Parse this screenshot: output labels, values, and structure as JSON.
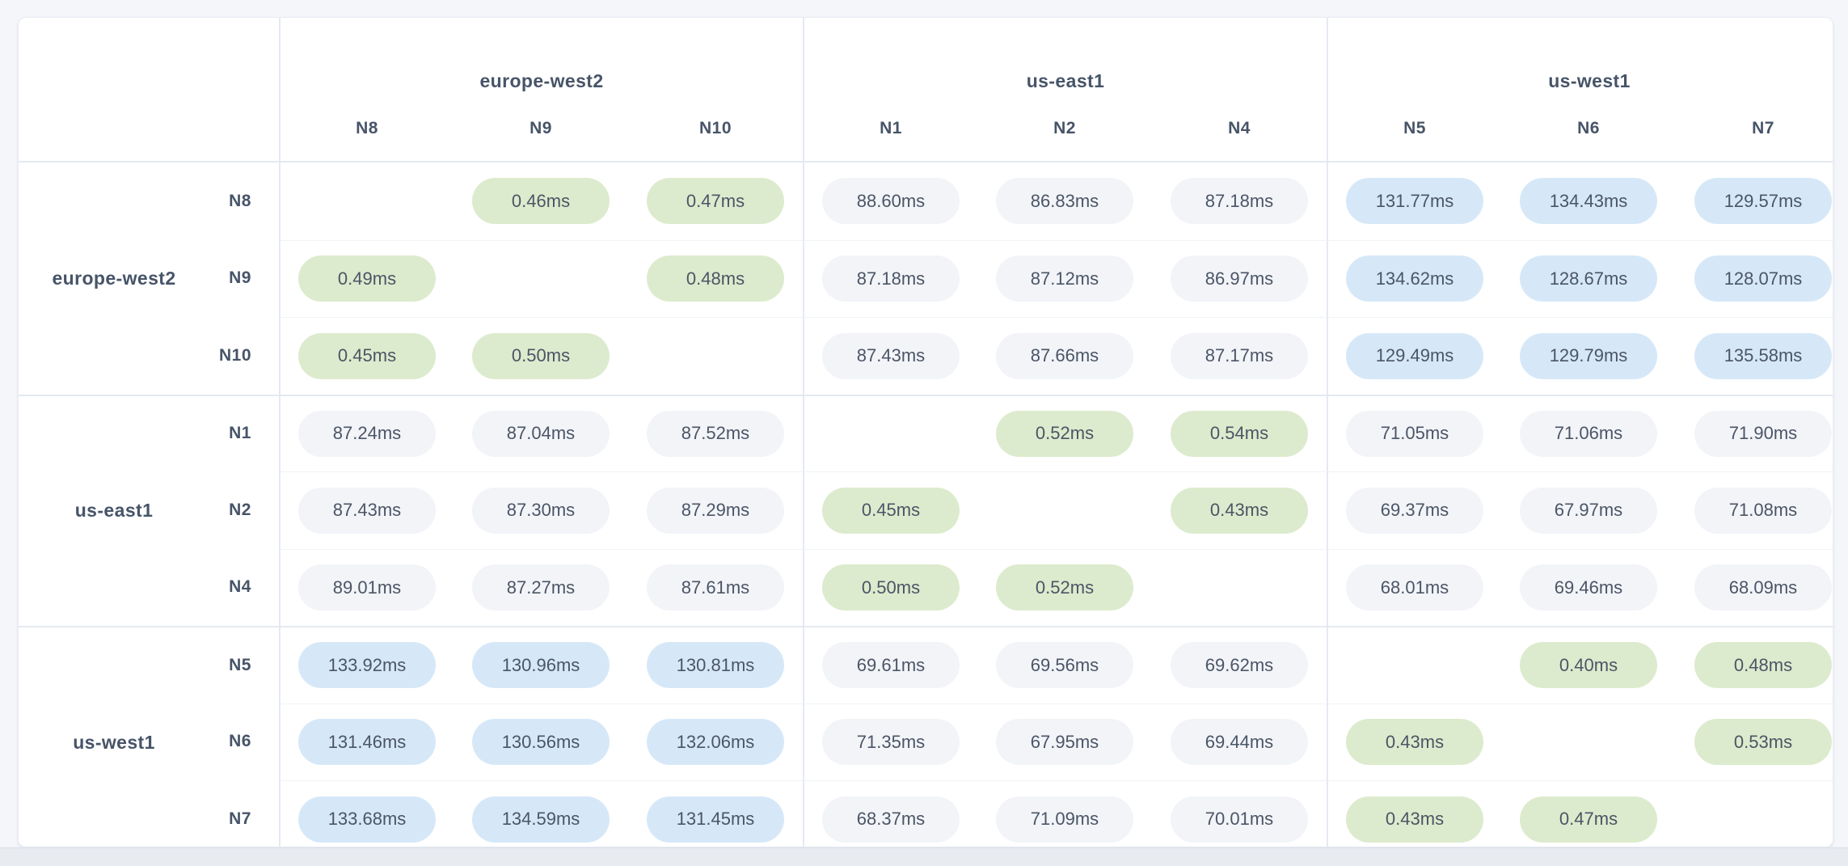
{
  "palette": {
    "page_bg": "#f4f6fa",
    "card_bg": "#ffffff",
    "card_border": "#e8ecf2",
    "divider_strong": "#e4e9f1",
    "divider_light": "#f0f3f7",
    "header_text": "#475468",
    "value_text": "#4b5566",
    "pill_intra": "#dcebcd",
    "pill_near": "#f2f4f8",
    "pill_far": "#d6e8f8",
    "footer_strip": "#e8ebf0",
    "footer_line": "#dadfe7"
  },
  "matrix": {
    "unit": "ms",
    "column_groups": [
      {
        "region": "europe-west2",
        "nodes": [
          "N8",
          "N9",
          "N10"
        ]
      },
      {
        "region": "us-east1",
        "nodes": [
          "N1",
          "N2",
          "N4"
        ]
      },
      {
        "region": "us-west1",
        "nodes": [
          "N5",
          "N6",
          "N7"
        ]
      }
    ],
    "row_groups": [
      {
        "region": "europe-west2",
        "rows": [
          {
            "node": "N8",
            "cells": [
              null,
              {
                "text": "0.46ms",
                "tone": "intra"
              },
              {
                "text": "0.47ms",
                "tone": "intra"
              },
              {
                "text": "88.60ms",
                "tone": "near"
              },
              {
                "text": "86.83ms",
                "tone": "near"
              },
              {
                "text": "87.18ms",
                "tone": "near"
              },
              {
                "text": "131.77ms",
                "tone": "far"
              },
              {
                "text": "134.43ms",
                "tone": "far"
              },
              {
                "text": "129.57ms",
                "tone": "far"
              }
            ]
          },
          {
            "node": "N9",
            "cells": [
              {
                "text": "0.49ms",
                "tone": "intra"
              },
              null,
              {
                "text": "0.48ms",
                "tone": "intra"
              },
              {
                "text": "87.18ms",
                "tone": "near"
              },
              {
                "text": "87.12ms",
                "tone": "near"
              },
              {
                "text": "86.97ms",
                "tone": "near"
              },
              {
                "text": "134.62ms",
                "tone": "far"
              },
              {
                "text": "128.67ms",
                "tone": "far"
              },
              {
                "text": "128.07ms",
                "tone": "far"
              }
            ]
          },
          {
            "node": "N10",
            "cells": [
              {
                "text": "0.45ms",
                "tone": "intra"
              },
              {
                "text": "0.50ms",
                "tone": "intra"
              },
              null,
              {
                "text": "87.43ms",
                "tone": "near"
              },
              {
                "text": "87.66ms",
                "tone": "near"
              },
              {
                "text": "87.17ms",
                "tone": "near"
              },
              {
                "text": "129.49ms",
                "tone": "far"
              },
              {
                "text": "129.79ms",
                "tone": "far"
              },
              {
                "text": "135.58ms",
                "tone": "far"
              }
            ]
          }
        ]
      },
      {
        "region": "us-east1",
        "rows": [
          {
            "node": "N1",
            "cells": [
              {
                "text": "87.24ms",
                "tone": "near"
              },
              {
                "text": "87.04ms",
                "tone": "near"
              },
              {
                "text": "87.52ms",
                "tone": "near"
              },
              null,
              {
                "text": "0.52ms",
                "tone": "intra"
              },
              {
                "text": "0.54ms",
                "tone": "intra"
              },
              {
                "text": "71.05ms",
                "tone": "near"
              },
              {
                "text": "71.06ms",
                "tone": "near"
              },
              {
                "text": "71.90ms",
                "tone": "near"
              }
            ]
          },
          {
            "node": "N2",
            "cells": [
              {
                "text": "87.43ms",
                "tone": "near"
              },
              {
                "text": "87.30ms",
                "tone": "near"
              },
              {
                "text": "87.29ms",
                "tone": "near"
              },
              {
                "text": "0.45ms",
                "tone": "intra"
              },
              null,
              {
                "text": "0.43ms",
                "tone": "intra"
              },
              {
                "text": "69.37ms",
                "tone": "near"
              },
              {
                "text": "67.97ms",
                "tone": "near"
              },
              {
                "text": "71.08ms",
                "tone": "near"
              }
            ]
          },
          {
            "node": "N4",
            "cells": [
              {
                "text": "89.01ms",
                "tone": "near"
              },
              {
                "text": "87.27ms",
                "tone": "near"
              },
              {
                "text": "87.61ms",
                "tone": "near"
              },
              {
                "text": "0.50ms",
                "tone": "intra"
              },
              {
                "text": "0.52ms",
                "tone": "intra"
              },
              null,
              {
                "text": "68.01ms",
                "tone": "near"
              },
              {
                "text": "69.46ms",
                "tone": "near"
              },
              {
                "text": "68.09ms",
                "tone": "near"
              }
            ]
          }
        ]
      },
      {
        "region": "us-west1",
        "rows": [
          {
            "node": "N5",
            "cells": [
              {
                "text": "133.92ms",
                "tone": "far"
              },
              {
                "text": "130.96ms",
                "tone": "far"
              },
              {
                "text": "130.81ms",
                "tone": "far"
              },
              {
                "text": "69.61ms",
                "tone": "near"
              },
              {
                "text": "69.56ms",
                "tone": "near"
              },
              {
                "text": "69.62ms",
                "tone": "near"
              },
              null,
              {
                "text": "0.40ms",
                "tone": "intra"
              },
              {
                "text": "0.48ms",
                "tone": "intra"
              }
            ]
          },
          {
            "node": "N6",
            "cells": [
              {
                "text": "131.46ms",
                "tone": "far"
              },
              {
                "text": "130.56ms",
                "tone": "far"
              },
              {
                "text": "132.06ms",
                "tone": "far"
              },
              {
                "text": "71.35ms",
                "tone": "near"
              },
              {
                "text": "67.95ms",
                "tone": "near"
              },
              {
                "text": "69.44ms",
                "tone": "near"
              },
              {
                "text": "0.43ms",
                "tone": "intra"
              },
              null,
              {
                "text": "0.53ms",
                "tone": "intra"
              }
            ]
          },
          {
            "node": "N7",
            "cells": [
              {
                "text": "133.68ms",
                "tone": "far"
              },
              {
                "text": "134.59ms",
                "tone": "far"
              },
              {
                "text": "131.45ms",
                "tone": "far"
              },
              {
                "text": "68.37ms",
                "tone": "near"
              },
              {
                "text": "71.09ms",
                "tone": "near"
              },
              {
                "text": "70.01ms",
                "tone": "near"
              },
              {
                "text": "0.43ms",
                "tone": "intra"
              },
              {
                "text": "0.47ms",
                "tone": "intra"
              },
              null
            ]
          }
        ]
      }
    ]
  }
}
